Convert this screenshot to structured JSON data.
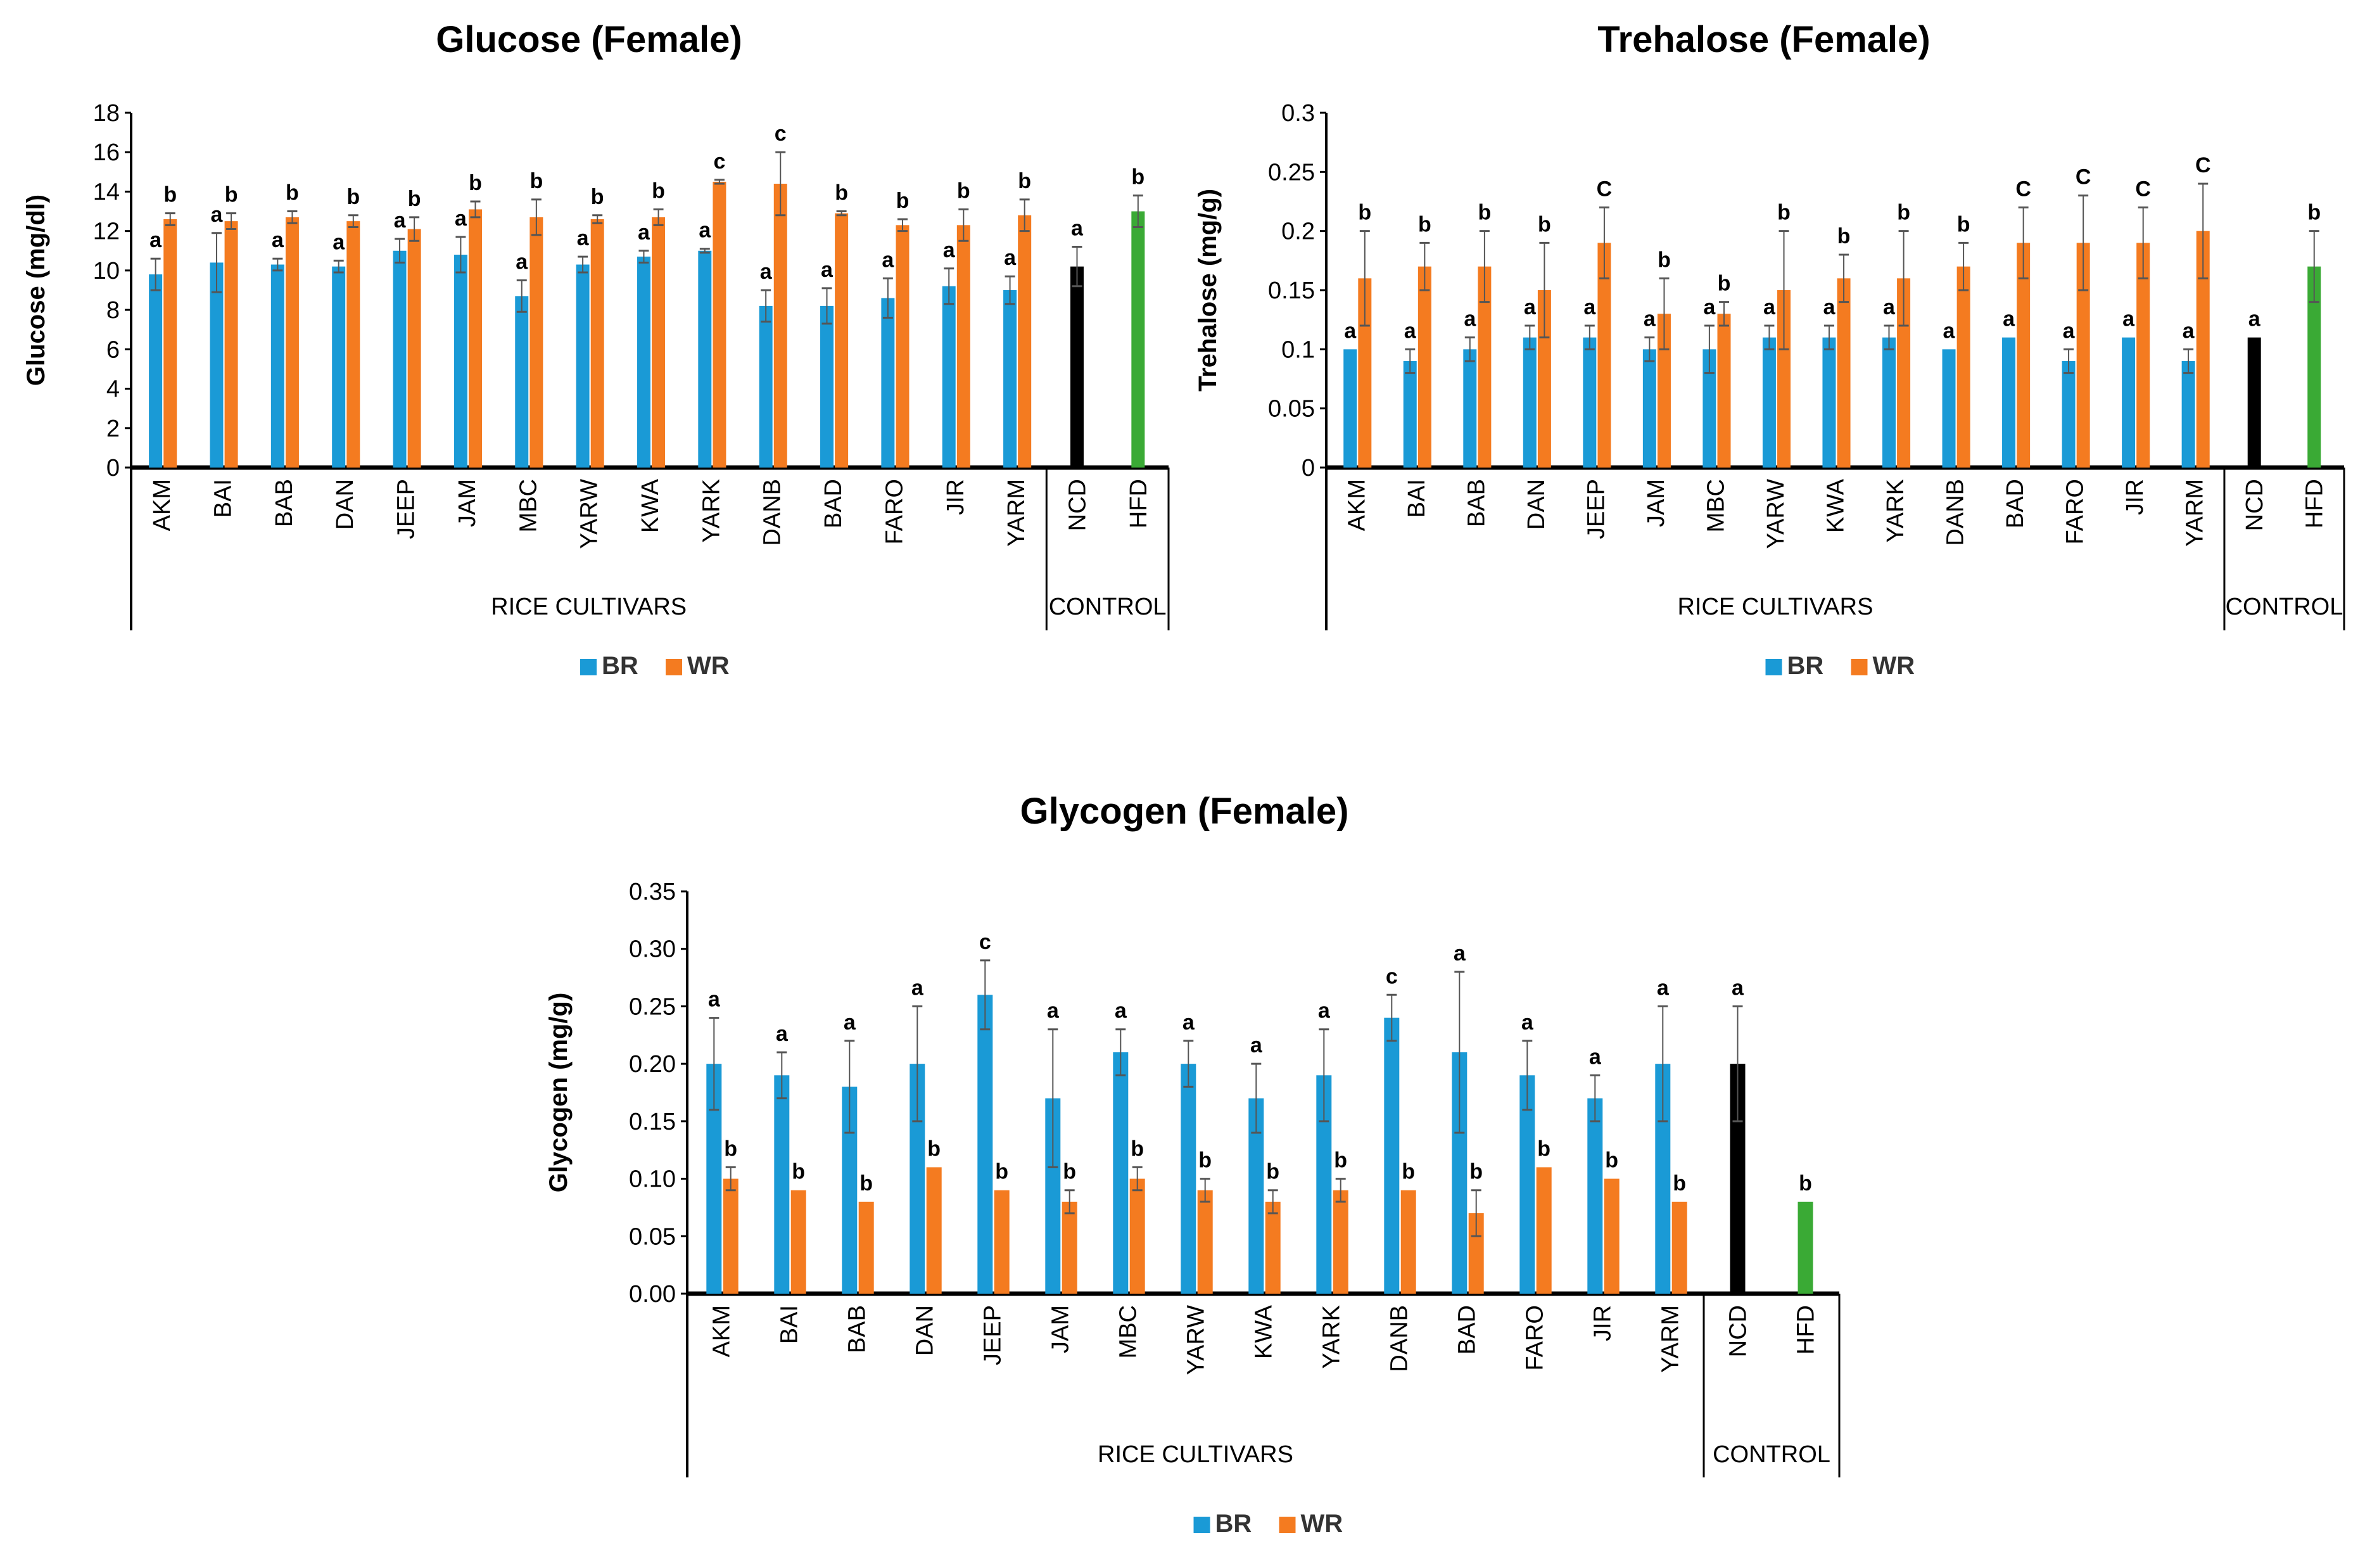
{
  "colors": {
    "BR": "#1a9ad6",
    "WR": "#f47b20",
    "NCD": "#000000",
    "HFD": "#3aaa35"
  },
  "chart_data": [
    {
      "type": "bar",
      "title": "Glucose (Female)",
      "ylabel": "Glucose (mg/dl)",
      "xlabel": "RICE CULTIVARS",
      "control_label": "CONTROL",
      "ylim": [
        0,
        18
      ],
      "yticks": [
        "0",
        "2",
        "4",
        "6",
        "8",
        "10",
        "12",
        "14",
        "16",
        "18"
      ],
      "ytick_values": [
        0,
        2,
        4,
        6,
        8,
        10,
        12,
        14,
        16,
        18
      ],
      "categories": [
        "AKM",
        "BAI",
        "BAB",
        "DAN",
        "JEEP",
        "JAM",
        "MBC",
        "YARW",
        "KWA",
        "YARK",
        "DANB",
        "BAD",
        "FARO",
        "JIR",
        "YARM"
      ],
      "controls": [
        "NCD",
        "HFD"
      ],
      "series": [
        {
          "name": "BR",
          "values": [
            9.8,
            10.4,
            10.3,
            10.2,
            11.0,
            10.8,
            8.7,
            10.3,
            10.7,
            11.0,
            8.2,
            8.2,
            8.6,
            9.2,
            9.0
          ],
          "errors": [
            0.8,
            1.5,
            0.3,
            0.3,
            0.6,
            0.9,
            0.8,
            0.4,
            0.3,
            0.1,
            0.8,
            0.9,
            1.0,
            0.9,
            0.7
          ],
          "letters": [
            "a",
            "a",
            "a",
            "a",
            "a",
            "a",
            "a",
            "a",
            "a",
            "a",
            "a",
            "a",
            "a",
            "a",
            "a"
          ]
        },
        {
          "name": "WR",
          "values": [
            12.6,
            12.5,
            12.7,
            12.5,
            12.1,
            13.1,
            12.7,
            12.6,
            12.7,
            14.5,
            14.4,
            12.9,
            12.3,
            12.3,
            12.8
          ],
          "errors": [
            0.3,
            0.4,
            0.3,
            0.3,
            0.6,
            0.4,
            0.9,
            0.2,
            0.4,
            0.1,
            1.6,
            0.1,
            0.3,
            0.8,
            0.8
          ],
          "letters": [
            "b",
            "b",
            "b",
            "b",
            "b",
            "b",
            "b",
            "b",
            "b",
            "c",
            "c",
            "b",
            "b",
            "b",
            "b"
          ]
        }
      ],
      "control_values": [
        {
          "name": "NCD",
          "value": 10.2,
          "error": 1.0,
          "letter": "a"
        },
        {
          "name": "HFD",
          "value": 13.0,
          "error": 0.8,
          "letter": "b"
        }
      ],
      "legend": [
        "BR",
        "WR"
      ],
      "legend_position": "bottom"
    },
    {
      "type": "bar",
      "title": "Trehalose (Female)",
      "ylabel": "Trehalose (mg/g)",
      "xlabel": "RICE CULTIVARS",
      "control_label": "CONTROL",
      "ylim": [
        0,
        0.3
      ],
      "yticks": [
        "0",
        "0.05",
        "0.1",
        "0.15",
        "0.2",
        "0.25",
        "0.3"
      ],
      "ytick_values": [
        0,
        0.05,
        0.1,
        0.15,
        0.2,
        0.25,
        0.3
      ],
      "categories": [
        "AKM",
        "BAI",
        "BAB",
        "DAN",
        "JEEP",
        "JAM",
        "MBC",
        "YARW",
        "KWA",
        "YARK",
        "DANB",
        "BAD",
        "FARO",
        "JIR",
        "YARM"
      ],
      "controls": [
        "NCD",
        "HFD"
      ],
      "series": [
        {
          "name": "BR",
          "values": [
            0.1,
            0.09,
            0.1,
            0.11,
            0.11,
            0.1,
            0.1,
            0.11,
            0.11,
            0.11,
            0.1,
            0.11,
            0.09,
            0.11,
            0.09
          ],
          "errors": [
            0,
            0.01,
            0.01,
            0.01,
            0.01,
            0.01,
            0.02,
            0.01,
            0.01,
            0.01,
            0,
            0,
            0.01,
            0,
            0.01
          ],
          "letters": [
            "a",
            "a",
            "a",
            "a",
            "a",
            "a",
            "a",
            "a",
            "a",
            "a",
            "a",
            "a",
            "a",
            "a",
            "a"
          ]
        },
        {
          "name": "WR",
          "values": [
            0.16,
            0.17,
            0.17,
            0.15,
            0.19,
            0.13,
            0.13,
            0.15,
            0.16,
            0.16,
            0.17,
            0.19,
            0.19,
            0.19,
            0.2
          ],
          "errors": [
            0.04,
            0.02,
            0.03,
            0.04,
            0.03,
            0.03,
            0.01,
            0.05,
            0.02,
            0.04,
            0.02,
            0.03,
            0.04,
            0.03,
            0.04
          ],
          "letters": [
            "b",
            "b",
            "b",
            "b",
            "C",
            "b",
            "b",
            "b",
            "b",
            "b",
            "b",
            "C",
            "C",
            "C",
            "C"
          ]
        }
      ],
      "control_values": [
        {
          "name": "NCD",
          "value": 0.11,
          "error": 0,
          "letter": "a"
        },
        {
          "name": "HFD",
          "value": 0.17,
          "error": 0.03,
          "letter": "b"
        }
      ],
      "legend": [
        "BR",
        "WR"
      ],
      "legend_position": "bottom"
    },
    {
      "type": "bar",
      "title": "Glycogen (Female)",
      "ylabel": "Glycogen (mg/g)",
      "xlabel": "RICE CULTIVARS",
      "control_label": "CONTROL",
      "ylim": [
        0,
        0.35
      ],
      "yticks": [
        "0.00",
        "0.05",
        "0.10",
        "0.15",
        "0.20",
        "0.25",
        "0.30",
        "0.35"
      ],
      "ytick_values": [
        0,
        0.05,
        0.1,
        0.15,
        0.2,
        0.25,
        0.3,
        0.35
      ],
      "categories": [
        "AKM",
        "BAI",
        "BAB",
        "DAN",
        "JEEP",
        "JAM",
        "MBC",
        "YARW",
        "KWA",
        "YARK",
        "DANB",
        "BAD",
        "FARO",
        "JIR",
        "YARM"
      ],
      "controls": [
        "NCD",
        "HFD"
      ],
      "series": [
        {
          "name": "BR",
          "values": [
            0.2,
            0.19,
            0.18,
            0.2,
            0.26,
            0.17,
            0.21,
            0.2,
            0.17,
            0.19,
            0.24,
            0.21,
            0.19,
            0.17,
            0.2
          ],
          "errors": [
            0.04,
            0.02,
            0.04,
            0.05,
            0.03,
            0.06,
            0.02,
            0.02,
            0.03,
            0.04,
            0.02,
            0.07,
            0.03,
            0.02,
            0.05
          ],
          "letters": [
            "a",
            "a",
            "a",
            "a",
            "c",
            "a",
            "a",
            "a",
            "a",
            "a",
            "c",
            "a",
            "a",
            "a",
            "a"
          ]
        },
        {
          "name": "WR",
          "values": [
            0.1,
            0.09,
            0.08,
            0.11,
            0.09,
            0.08,
            0.1,
            0.09,
            0.08,
            0.09,
            0.09,
            0.07,
            0.11,
            0.1,
            0.08
          ],
          "errors": [
            0.01,
            0,
            0,
            0,
            0,
            0.01,
            0.01,
            0.01,
            0.01,
            0.01,
            0,
            0.02,
            0,
            0,
            0
          ],
          "letters": [
            "b",
            "b",
            "b",
            "b",
            "b",
            "b",
            "b",
            "b",
            "b",
            "b",
            "b",
            "b",
            "b",
            "b",
            "b"
          ]
        }
      ],
      "control_values": [
        {
          "name": "NCD",
          "value": 0.2,
          "error": 0.05,
          "letter": "a"
        },
        {
          "name": "HFD",
          "value": 0.08,
          "error": 0,
          "letter": "b"
        }
      ],
      "legend": [
        "BR",
        "WR"
      ],
      "legend_position": "bottom"
    }
  ]
}
